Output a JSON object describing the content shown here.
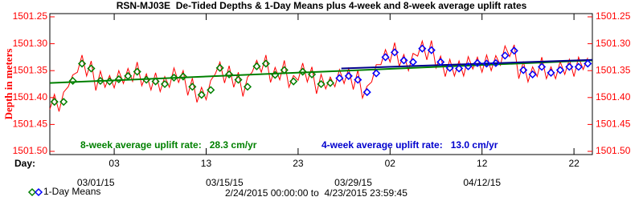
{
  "chart_data": {
    "type": "line",
    "title": "RSN-MJ03E  De-Tided Depths & 1-Day Means plus 4-week and 8-week average uplift rates",
    "ylabel": "Depth in meters",
    "xlabel": "Day:",
    "date_range": "2/24/2015 00:00:00 to  4/23/2015 23:59:45",
    "xlim": [
      0,
      59
    ],
    "ylim": [
      1501.25,
      1501.5
    ],
    "y_inverted": true,
    "yticks": [
      1501.25,
      {
        "value": 1501.3,
        "label": "1501.30"
      },
      1501.35,
      {
        "value": 1501.4,
        "label": "1501.40"
      },
      1501.45,
      {
        "value": 1501.5,
        "label": "1501.50"
      }
    ],
    "xticks": [
      {
        "value": 7,
        "label": "03"
      },
      {
        "value": 17,
        "label": "13"
      },
      {
        "value": 27,
        "label": "23"
      },
      {
        "value": 37,
        "label": "02"
      },
      {
        "value": 47,
        "label": "12"
      },
      {
        "value": 57,
        "label": "22"
      }
    ],
    "xticks2": [
      {
        "value": 5,
        "label": "03/01/15"
      },
      {
        "value": 19,
        "label": "03/15/15"
      },
      {
        "value": 33,
        "label": "03/29/15"
      },
      {
        "value": 47,
        "label": "04/12/15"
      }
    ],
    "axis_color": "#ff0000",
    "series": [
      {
        "color": "#ff0000",
        "x": [
          0,
          0.5,
          1,
          1.5,
          2,
          2.5,
          3,
          3.5,
          4,
          4.5,
          5,
          5.5,
          6,
          6.5,
          7,
          7.5,
          8,
          8.5,
          9,
          9.5,
          10,
          10.5,
          11,
          11.5,
          12,
          12.5,
          13,
          13.5,
          14,
          14.5,
          15,
          15.5,
          16,
          16.5,
          17,
          17.5,
          18,
          18.5,
          19,
          19.5,
          20,
          20.5,
          21,
          21.5,
          22,
          22.5,
          23,
          23.5,
          24,
          24.5,
          25,
          25.5,
          26,
          26.5,
          27,
          27.5,
          28,
          28.5,
          29,
          29.5,
          30,
          30.5,
          31,
          31.5,
          32,
          32.5,
          33,
          33.5,
          34,
          34.5,
          35,
          35.5,
          36,
          36.5,
          37,
          37.5,
          38,
          38.5,
          39,
          39.5,
          40,
          40.5,
          41,
          41.5,
          42,
          42.5,
          43,
          43.5,
          44,
          44.5,
          45,
          45.5,
          46,
          46.5,
          47,
          47.5,
          48,
          48.5,
          49,
          49.5,
          50,
          50.5,
          51,
          51.5,
          52,
          52.5,
          53,
          53.5,
          54,
          54.5,
          55,
          55.5,
          56,
          56.5,
          57,
          57.5,
          58,
          58.5
        ],
        "values": [
          1501.422,
          1501.394,
          1501.426,
          1501.39,
          1501.38,
          1501.358,
          1501.353,
          1501.321,
          1501.36,
          1501.332,
          1501.387,
          1501.351,
          1501.381,
          1501.359,
          1501.382,
          1501.35,
          1501.374,
          1501.346,
          1501.37,
          1501.334,
          1501.378,
          1501.356,
          1501.386,
          1501.354,
          1501.389,
          1501.361,
          1501.381,
          1501.345,
          1501.372,
          1501.35,
          1501.396,
          1501.364,
          1501.409,
          1501.381,
          1501.404,
          1501.368,
          1501.356,
          1501.334,
          1501.373,
          1501.341,
          1501.381,
          1501.353,
          1501.398,
          1501.362,
          1501.353,
          1501.331,
          1501.353,
          1501.321,
          1501.372,
          1501.344,
          1501.367,
          1501.331,
          1501.381,
          1501.359,
          1501.368,
          1501.336,
          1501.371,
          1501.343,
          1501.393,
          1501.357,
          1501.384,
          1501.362,
          1501.38,
          1501.348,
          1501.374,
          1501.346,
          1501.385,
          1501.349,
          1501.401,
          1501.379,
          1501.371,
          1501.339,
          1501.339,
          1501.311,
          1501.334,
          1501.298,
          1501.342,
          1501.32,
          1501.35,
          1501.318,
          1501.323,
          1501.295,
          1501.33,
          1501.294,
          1501.345,
          1501.323,
          1501.361,
          1501.329,
          1501.36,
          1501.332,
          1501.36,
          1501.324,
          1501.347,
          1501.325,
          1501.353,
          1501.321,
          1501.35,
          1501.322,
          1501.34,
          1501.304,
          1501.324,
          1501.302,
          1501.365,
          1501.333,
          1501.371,
          1501.343,
          1501.361,
          1501.325,
          1501.365,
          1501.343,
          1501.365,
          1501.333,
          1501.357,
          1501.329,
          1501.361,
          1501.325,
          1501.348,
          1501.326
        ]
      }
    ],
    "means_name": "1-Day Means",
    "means": [
      {
        "color": "#008000",
        "x": [
          0.5,
          1.5,
          2.5,
          3.5,
          4.5,
          5.5,
          6.5,
          7.5,
          8.5,
          9.5,
          10.5,
          11.5,
          12.5,
          13.5,
          14.5,
          15.5,
          16.5,
          17.5,
          18.5,
          19.5,
          20.5,
          21.5,
          22.5,
          23.5,
          24.5,
          25.5,
          26.5,
          27.5,
          28.5,
          29.5,
          30.5
        ],
        "values": [
          1501.408,
          1501.408,
          1501.369,
          1501.337,
          1501.346,
          1501.369,
          1501.37,
          1501.366,
          1501.36,
          1501.352,
          1501.367,
          1501.37,
          1501.375,
          1501.363,
          1501.361,
          1501.38,
          1501.395,
          1501.386,
          1501.345,
          1501.357,
          1501.367,
          1501.38,
          1501.342,
          1501.337,
          1501.358,
          1501.349,
          1501.37,
          1501.352,
          1501.357,
          1501.375,
          1501.373
        ]
      },
      {
        "color": "#0000ff",
        "x": [
          31.5,
          32.5,
          33.5,
          34.5,
          35.5,
          36.5,
          37.5,
          38.5,
          39.5,
          40.5,
          41.5,
          42.5,
          43.5,
          44.5,
          45.5,
          46.5,
          47.5,
          48.5,
          49.5,
          50.5,
          51.5,
          52.5,
          53.5,
          54.5,
          55.5,
          56.5,
          57.5,
          58.5
        ],
        "values": [
          1501.364,
          1501.36,
          1501.367,
          1501.39,
          1501.355,
          1501.325,
          1501.316,
          1501.331,
          1501.334,
          1501.309,
          1501.312,
          1501.334,
          1501.345,
          1501.346,
          1501.342,
          1501.336,
          1501.337,
          1501.336,
          1501.322,
          1501.313,
          1501.349,
          1501.357,
          1501.343,
          1501.354,
          1501.349,
          1501.343,
          1501.343,
          1501.337
        ]
      }
    ],
    "trends": [
      {
        "color": "#008000",
        "x": [
          0,
          59
        ],
        "values": [
          1501.373,
          1501.331
        ]
      },
      {
        "color": "#00008b",
        "x": [
          31.7,
          59
        ],
        "values": [
          1501.346,
          1501.33
        ]
      }
    ],
    "annotations": [
      {
        "text": "8-week average uplift rate:   28.3 cm/yr",
        "color": "#008000"
      },
      {
        "text": "4-week average uplift rate:   13.0 cm/yr",
        "color": "#0000cd"
      }
    ]
  }
}
